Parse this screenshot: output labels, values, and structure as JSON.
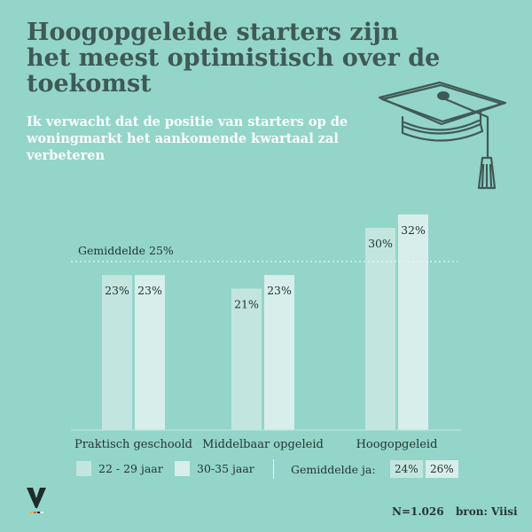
{
  "title": "Hoogopgeleide starters zijn het meest optimistisch over de toekomst",
  "subtitle": "Ik verwacht dat de positie van starters op de woningmarkt het aankomende kwartaal zal verbeteren",
  "colors": {
    "background": "#93d5c9",
    "series_22_29": "#c3e5df",
    "series_30_35": "#d7eeea",
    "title": "#3f5a55",
    "text": "#253533"
  },
  "chart_data": {
    "type": "bar",
    "categories": [
      "Praktisch geschoold",
      "Middelbaar opgeleid",
      "Hoogopgeleid"
    ],
    "series": [
      {
        "name": "22 - 29 jaar",
        "values": [
          23,
          21,
          30
        ]
      },
      {
        "name": "30-35 jaar",
        "values": [
          23,
          23,
          32
        ]
      }
    ],
    "value_labels": [
      [
        "23%",
        "23%"
      ],
      [
        "21%",
        "23%"
      ],
      [
        "30%",
        "32%"
      ]
    ],
    "reference_line": {
      "label": "Gemiddelde 25%",
      "value": 25
    },
    "ylim": [
      0,
      35
    ],
    "grid": false,
    "legend_position": "bottom"
  },
  "legend": {
    "series_1": "22 - 29 jaar",
    "series_2": "30-35 jaar",
    "average_label": "Gemiddelde ja:",
    "average_1": "24%",
    "average_2": "26%"
  },
  "footer": {
    "n": "N=1.026",
    "source": "bron: Viisi"
  },
  "icons": [
    "graduation-cap-icon",
    "viisi-logo"
  ]
}
